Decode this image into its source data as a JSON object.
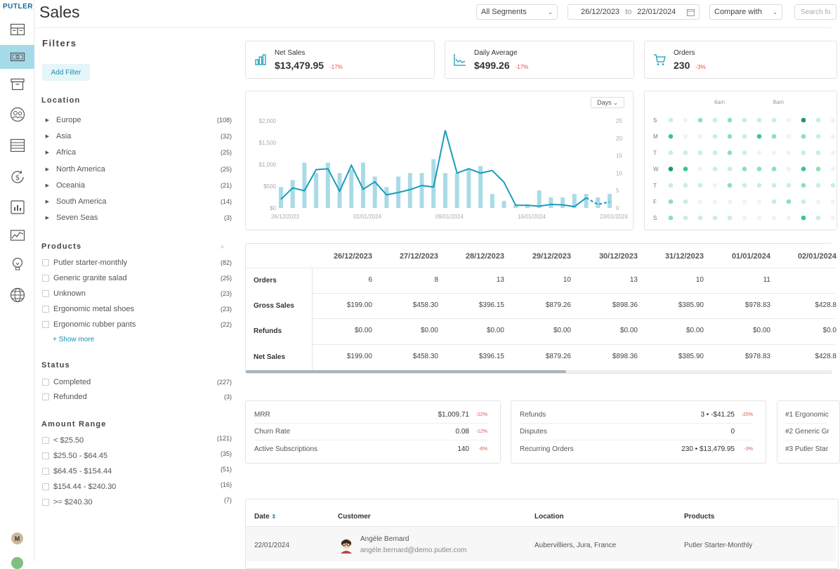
{
  "brand": "PUTLER",
  "page_title": "Sales",
  "header": {
    "segments": "All Segments",
    "date_from": "26/12/2023",
    "date_to_label": "to",
    "date_to": "22/01/2024",
    "compare": "Compare with",
    "search_placeholder": "Search fo"
  },
  "rail_icons": [
    "dashboard-icon",
    "sales-icon",
    "products-icon",
    "customers-icon",
    "transactions-icon",
    "subscriptions-icon",
    "audience-icon",
    "insights-icon",
    "ideas-icon",
    "websites-icon"
  ],
  "rail_avatar": "M",
  "filters": {
    "title": "Filters",
    "add_filter": "Add Filter",
    "location_title": "Location",
    "locations": [
      {
        "label": "Europe",
        "count": "(108)"
      },
      {
        "label": "Asia",
        "count": "(32)"
      },
      {
        "label": "Africa",
        "count": "(25)"
      },
      {
        "label": "North America",
        "count": "(25)"
      },
      {
        "label": "Oceania",
        "count": "(21)"
      },
      {
        "label": "South America",
        "count": "(14)"
      },
      {
        "label": "Seven Seas",
        "count": "(3)"
      }
    ],
    "products_title": "Products",
    "products": [
      {
        "label": "Putler starter-monthly",
        "count": "(82)"
      },
      {
        "label": "Generic granite salad",
        "count": "(25)"
      },
      {
        "label": "Unknown",
        "count": "(23)"
      },
      {
        "label": "Ergonomic metal shoes",
        "count": "(23)"
      },
      {
        "label": "Ergonomic rubber pants",
        "count": "(22)"
      }
    ],
    "show_more": "+ Show more",
    "status_title": "Status",
    "statuses": [
      {
        "label": "Completed",
        "count": "(227)"
      },
      {
        "label": "Refunded",
        "count": "(3)"
      }
    ],
    "amount_title": "Amount Range",
    "amounts": [
      {
        "label": "< $25.50",
        "count": "(121)"
      },
      {
        "label": "$25.50 - $64.45",
        "count": "(35)"
      },
      {
        "label": "$64.45 - $154.44",
        "count": "(51)"
      },
      {
        "label": "$154.44 - $240.30",
        "count": "(16)"
      },
      {
        "label": ">= $240.30",
        "count": "(7)"
      }
    ]
  },
  "kpis": [
    {
      "label": "Net Sales",
      "value": "$13,479.95",
      "delta": "-17%",
      "icon": "bar-chart-icon"
    },
    {
      "label": "Daily Average",
      "value": "$499.26",
      "delta": "-17%",
      "icon": "area-chart-icon"
    },
    {
      "label": "Orders",
      "value": "230",
      "delta": "-3%",
      "icon": "cart-icon"
    }
  ],
  "chart_data": {
    "type": "bar",
    "granularity_label": "Days",
    "x_tick_labels": [
      "26/12/2023",
      "02/01/2024",
      "09/01/2024",
      "16/01/2024",
      "23/01/2024"
    ],
    "y_left_ticks": [
      "$2,000",
      "$1,500",
      "$1,000",
      "$500",
      "$0"
    ],
    "y_right_ticks": [
      "25",
      "20",
      "15",
      "10",
      "5",
      "0"
    ],
    "ylim_left": [
      0,
      2000
    ],
    "ylim_right": [
      0,
      25
    ],
    "bar_color": "#a9dbe6",
    "line_color": "#1a9cb8",
    "orders_bars": [
      6,
      8,
      13,
      10,
      13,
      10,
      11,
      13,
      9,
      6,
      9,
      10,
      10,
      14,
      10,
      10,
      11,
      12,
      4,
      2,
      1,
      1,
      5,
      3,
      3,
      4,
      4,
      3,
      4
    ],
    "net_sales_line": [
      199,
      458.3,
      396.15,
      879.26,
      898.36,
      385.9,
      978.83,
      428.8,
      600,
      300,
      355,
      420,
      514,
      480,
      1780,
      800,
      900,
      800,
      860,
      590,
      60,
      60,
      40,
      80,
      70,
      30,
      230,
      80,
      140
    ],
    "forecast_start_index": 26
  },
  "heatmap": {
    "hour_labels": [
      "4am",
      "8am"
    ],
    "day_labels": [
      "S",
      "M",
      "T",
      "W",
      "T",
      "F",
      "S"
    ],
    "colors": [
      "#f2f2f2",
      "#c9f0d9",
      "#8fe0b2",
      "#3cc682",
      "#1e9a5c"
    ],
    "levels": [
      [
        1,
        0,
        2,
        1,
        2,
        1,
        1,
        1,
        0,
        4,
        1,
        0,
        1,
        1
      ],
      [
        3,
        0,
        0,
        1,
        2,
        1,
        3,
        2,
        0,
        2,
        1,
        0,
        2,
        1
      ],
      [
        1,
        1,
        1,
        1,
        2,
        1,
        0,
        0,
        0,
        1,
        1,
        0,
        1,
        0
      ],
      [
        4,
        3,
        0,
        1,
        1,
        2,
        2,
        2,
        0,
        3,
        2,
        0,
        2,
        1
      ],
      [
        1,
        1,
        1,
        0,
        2,
        1,
        1,
        1,
        1,
        2,
        1,
        1,
        2,
        1
      ],
      [
        2,
        1,
        0,
        0,
        0,
        0,
        0,
        1,
        2,
        1,
        0,
        0,
        1,
        0
      ],
      [
        2,
        1,
        1,
        1,
        1,
        0,
        0,
        0,
        0,
        3,
        1,
        0,
        1,
        0
      ]
    ]
  },
  "daily_table": {
    "dates": [
      "26/12/2023",
      "27/12/2023",
      "28/12/2023",
      "29/12/2023",
      "30/12/2023",
      "31/12/2023",
      "01/01/2024",
      "02/01/2024"
    ],
    "row_labels": [
      "Orders",
      "Gross Sales",
      "Refunds",
      "Net Sales"
    ],
    "rows": [
      [
        "6",
        "8",
        "13",
        "10",
        "13",
        "10",
        "11",
        ""
      ],
      [
        "$199.00",
        "$458.30",
        "$396.15",
        "$879.26",
        "$898.36",
        "$385.90",
        "$978.83",
        "$428.8"
      ],
      [
        "$0.00",
        "$0.00",
        "$0.00",
        "$0.00",
        "$0.00",
        "$0.00",
        "$0.00",
        "$0.0"
      ],
      [
        "$199.00",
        "$458.30",
        "$396.15",
        "$879.26",
        "$898.36",
        "$385.90",
        "$978.83",
        "$428.8"
      ]
    ]
  },
  "metrics_left": [
    {
      "label": "MRR",
      "value": "$1,009.71",
      "delta": "-22%"
    },
    {
      "label": "Churn Rate",
      "value": "0.08",
      "delta": "-12%"
    },
    {
      "label": "Active Subscriptions",
      "value": "140",
      "delta": "-6%"
    }
  ],
  "metrics_mid": [
    {
      "label": "Refunds",
      "value": "3 • -$41.25",
      "delta": "-25%"
    },
    {
      "label": "Disputes",
      "value": "0",
      "delta": ""
    },
    {
      "label": "Recurring Orders",
      "value": "230 • $13,479.95",
      "delta": "-3%"
    }
  ],
  "top_products": [
    "#1 Ergonomic",
    "#2 Generic Gr",
    "#3 Putler Star"
  ],
  "orders_list": {
    "headers": {
      "date": "Date",
      "customer": "Customer",
      "location": "Location",
      "products": "Products"
    },
    "row": {
      "date": "22/01/2024",
      "name": "Angèle Bernard",
      "email": "angèle.bernard@demo.putler.com",
      "location": "Aubervilliers, Jura, France",
      "product": "Putler Starter-Monthly"
    }
  }
}
